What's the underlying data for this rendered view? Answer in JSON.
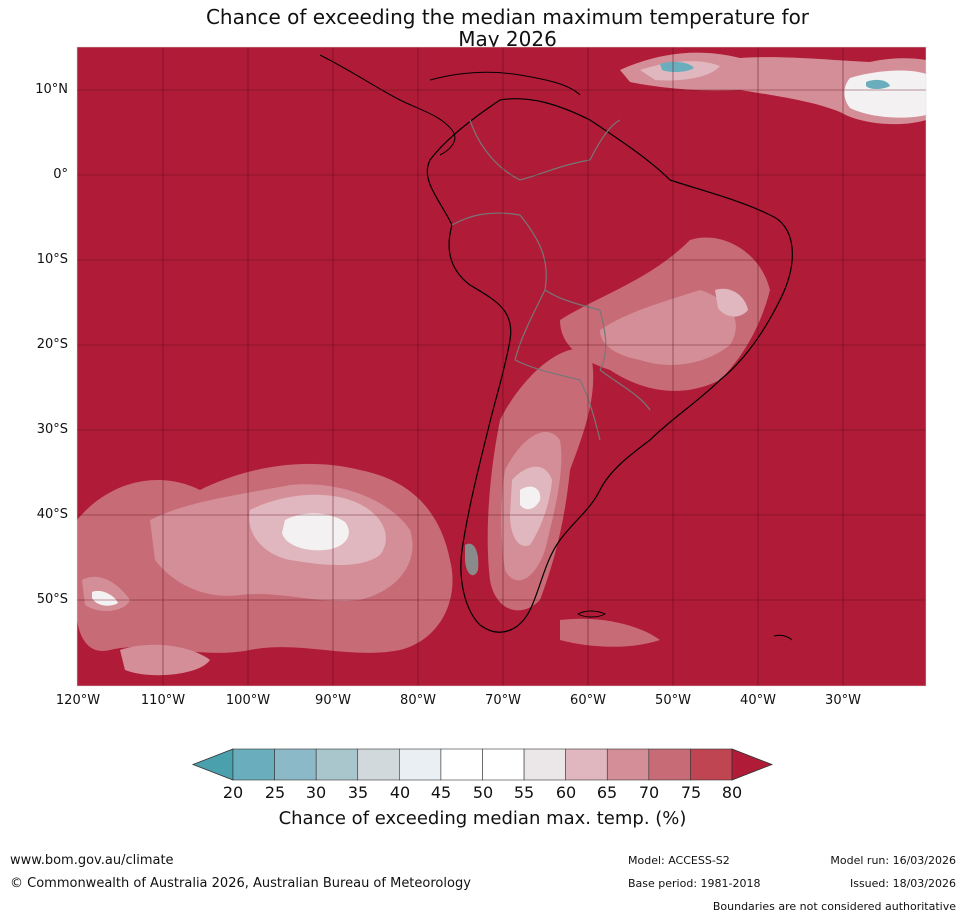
{
  "title_line1": "Chance of exceeding the median maximum temperature for",
  "title_line2": "May 2026",
  "lat_labels": [
    "10°N",
    "0°",
    "10°S",
    "20°S",
    "30°S",
    "40°S",
    "50°S"
  ],
  "lon_labels": [
    "120°W",
    "110°W",
    "100°W",
    "90°W",
    "80°W",
    "70°W",
    "60°W",
    "50°W",
    "40°W",
    "30°W"
  ],
  "colorbar": {
    "ticks": [
      "20",
      "25",
      "30",
      "35",
      "40",
      "45",
      "50",
      "55",
      "60",
      "65",
      "70",
      "75",
      "80"
    ],
    "label": "Chance of exceeding median max. temp. (%)",
    "colors": [
      "#4ba0ae",
      "#6aaebd",
      "#8bb9c7",
      "#a9c6cd",
      "#d2d9dc",
      "#e9eff2",
      "#ffffff",
      "#ffffff",
      "#ebe7e9",
      "#e0b7be",
      "#d48e97",
      "#c76b76",
      "#c04553",
      "#b01b37"
    ]
  },
  "map": {
    "ocean_color": "#b01b37",
    "colors": {
      "light_pink": "#d48e97",
      "mid_pink": "#c76b76",
      "pale": "#e0b7be",
      "white": "#f4f1f2",
      "blue": "#6aaebd"
    }
  },
  "footer": {
    "website": "www.bom.gov.au/climate",
    "copyright": "© Commonwealth of Australia 2026, Australian Bureau of Meteorology",
    "model": "Model: ACCESS-S2",
    "base_period": "Base period: 1981-2018",
    "model_run": "Model run: 16/03/2026",
    "issued": "Issued: 18/03/2026",
    "disclaimer": "Boundaries are not considered authoritative"
  }
}
